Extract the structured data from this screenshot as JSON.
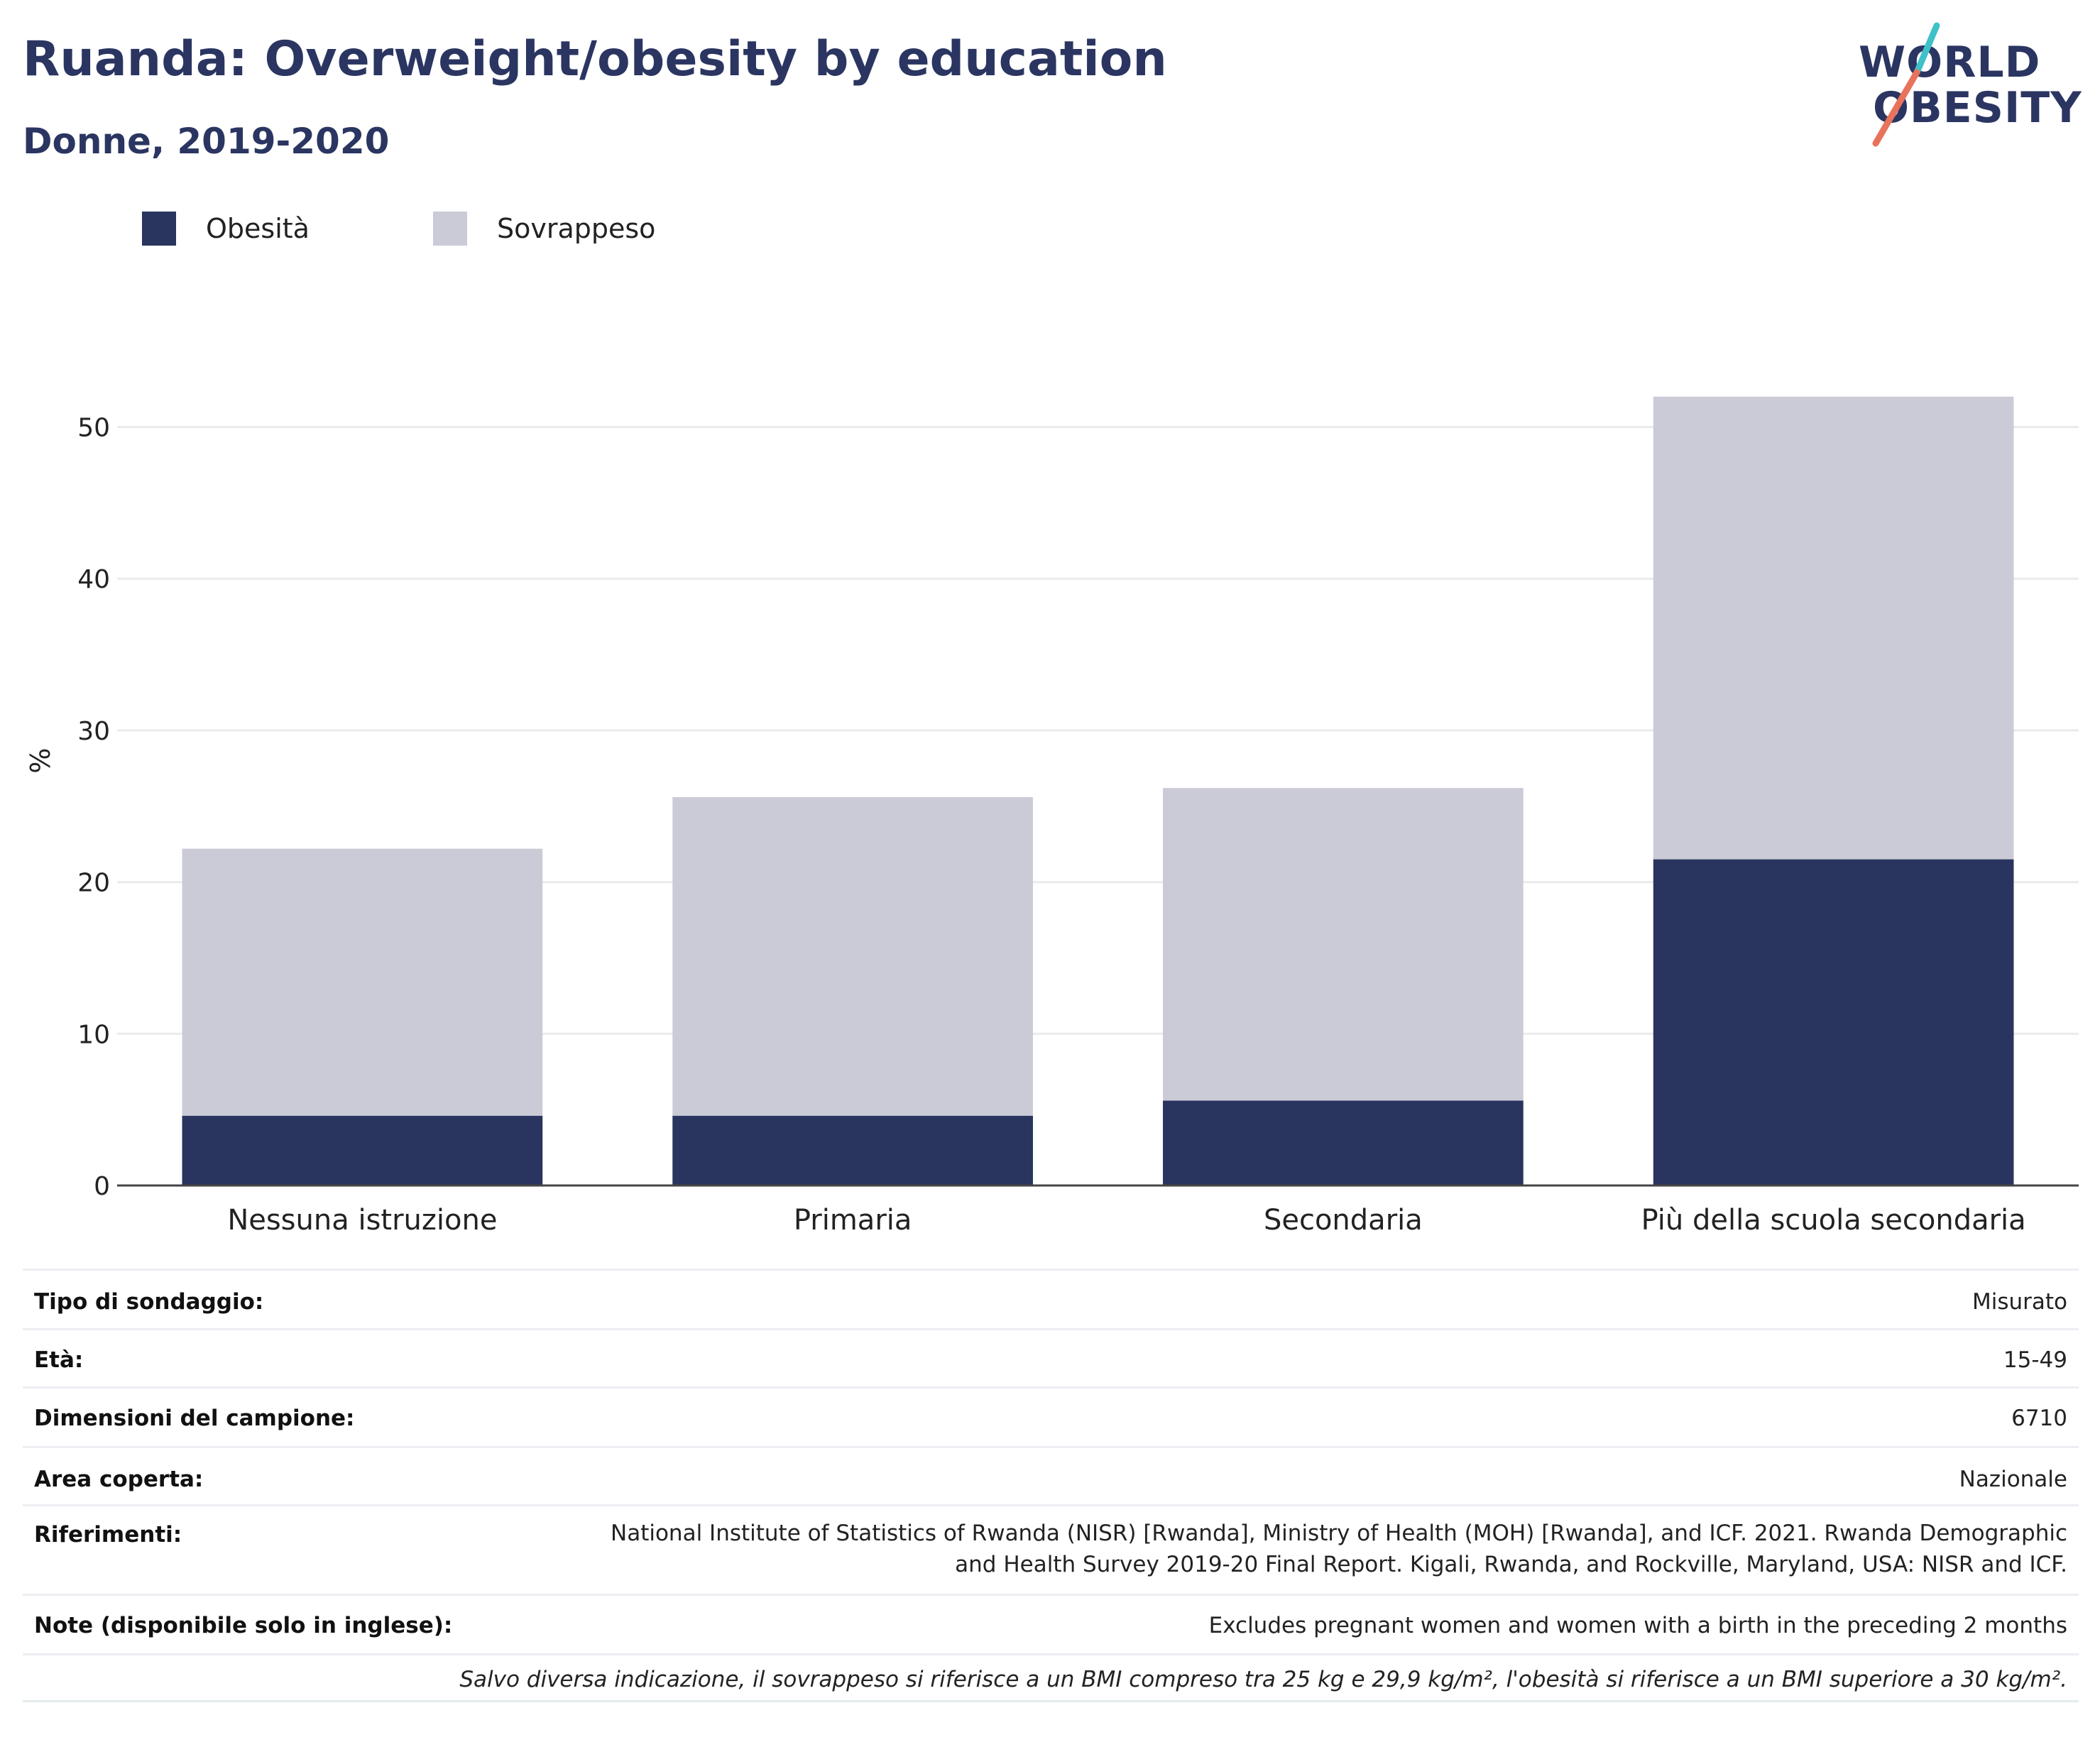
{
  "header": {
    "title": "Ruanda: Overweight/obesity by education",
    "subtitle": "Donne, 2019-2020"
  },
  "logo": {
    "line1": "WORLD",
    "line2": "OBESITY",
    "accent_colors": [
      "#3fc1c9",
      "#e8735a"
    ]
  },
  "legend": {
    "items": [
      {
        "label": "Obesità",
        "color": "#29355f"
      },
      {
        "label": "Sovrappeso",
        "color": "#cacbd7"
      }
    ]
  },
  "chart_data": {
    "type": "bar",
    "stacked": true,
    "categories": [
      "Nessuna istruzione",
      "Primaria",
      "Secondaria",
      "Più della scuola secondaria"
    ],
    "series": [
      {
        "name": "Obesità",
        "values": [
          4.6,
          4.6,
          5.6,
          21.5
        ],
        "color": "#29355f"
      },
      {
        "name": "Sovrappeso",
        "values": [
          17.6,
          21.0,
          20.6,
          30.5
        ],
        "color": "#cacbd7"
      }
    ],
    "ylabel": "%",
    "ylim": [
      0,
      55
    ],
    "yticks": [
      0,
      10,
      20,
      30,
      40,
      50
    ],
    "grid": true,
    "legend_position": "top-left"
  },
  "info": {
    "rows": [
      {
        "key": "Tipo di sondaggio:",
        "value": "Misurato"
      },
      {
        "key": "Età:",
        "value": "15-49"
      },
      {
        "key": "Dimensioni del campione:",
        "value": "6710"
      },
      {
        "key": "Area coperta:",
        "value": "Nazionale"
      },
      {
        "key": "Riferimenti:",
        "value_lines": [
          "National Institute of Statistics of Rwanda (NISR) [Rwanda], Ministry of Health (MOH) [Rwanda], and ICF. 2021. Rwanda Demographic",
          "and Health Survey 2019-20 Final Report. Kigali, Rwanda, and Rockville, Maryland, USA: NISR and ICF."
        ]
      },
      {
        "key": "Note (disponibile solo in inglese):",
        "value": "Excludes pregnant women and women with a birth in the preceding 2 months"
      }
    ],
    "footnote": "Salvo diversa indicazione, il sovrappeso si riferisce a un BMI compreso tra 25 kg e 29,9 kg/m², l'obesità si riferisce a un BMI superiore a 30 kg/m²."
  }
}
